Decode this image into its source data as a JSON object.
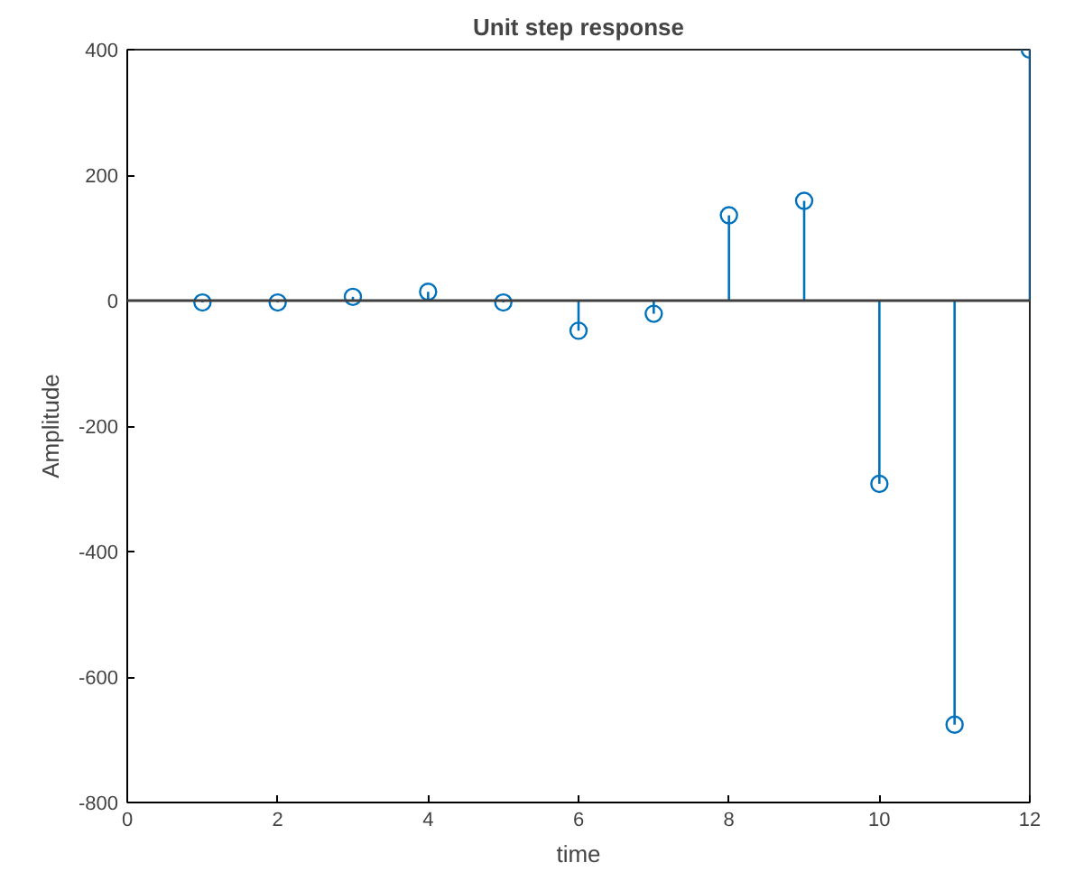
{
  "chart_data": {
    "type": "lollipop",
    "title": "Unit step response",
    "xlabel": "time",
    "ylabel": "Amplitude",
    "x": [
      1,
      2,
      3,
      4,
      5,
      6,
      7,
      8,
      9,
      10,
      11,
      12
    ],
    "series": [
      {
        "color": "#0072bd",
        "values": [
          -3,
          -3,
          6,
          14,
          -3,
          -48,
          -21,
          136,
          159,
          -292,
          -676,
          400
        ]
      }
    ],
    "xlim": [
      0,
      12
    ],
    "ylim": [
      -800,
      400
    ],
    "xticks": [
      0,
      2,
      4,
      6,
      8,
      10,
      12
    ],
    "yticks": [
      -800,
      -600,
      -400,
      -200,
      0,
      200,
      400
    ],
    "ref_lines": [
      {
        "axis": "y",
        "value": 0,
        "color": "#404040"
      }
    ],
    "marker": "circle",
    "grid": false
  }
}
